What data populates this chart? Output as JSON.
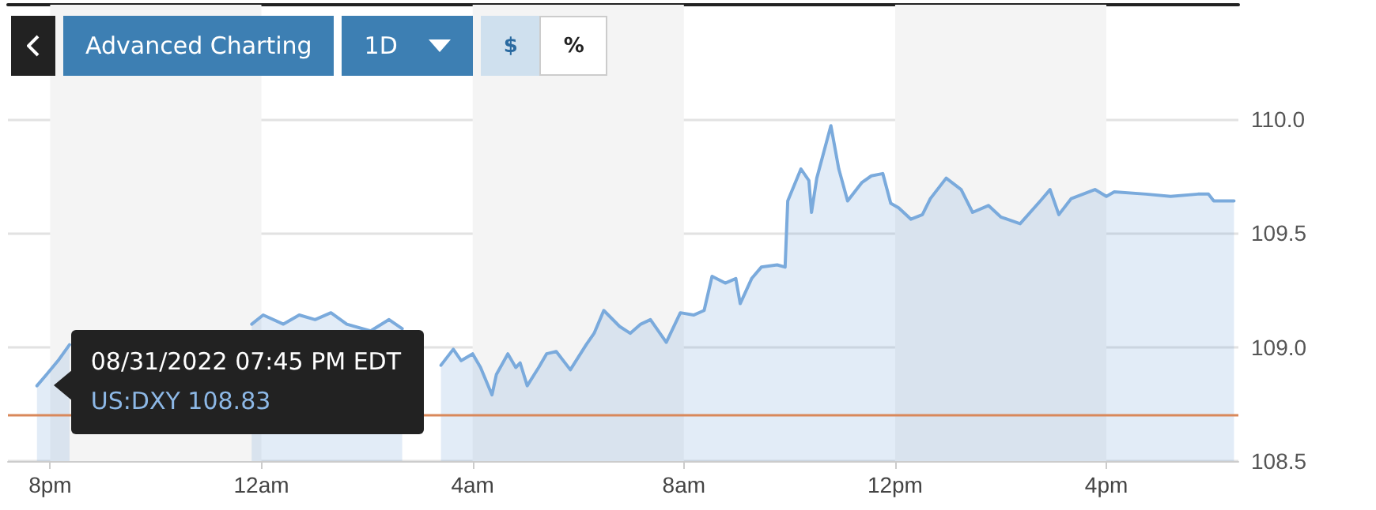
{
  "chart_data": {
    "type": "area",
    "x": [
      "2022-08-31T19:45",
      "2022-08-31T19:56",
      "2022-08-31T20:09",
      "2022-08-31T20:22",
      "2022-08-31T20:30",
      "2022-08-31T23:42",
      "2022-08-31T23:49",
      "2022-09-01T00:02",
      "2022-09-01T00:25",
      "2022-09-01T00:43",
      "2022-09-01T01:01",
      "2022-09-01T01:19",
      "2022-09-01T01:37",
      "2022-09-01T02:04",
      "2022-09-01T02:25",
      "2022-09-01T02:40",
      "2022-09-01T03:00",
      "2022-09-01T03:24",
      "2022-09-01T03:38",
      "2022-09-01T03:47",
      "2022-09-01T04:00",
      "2022-09-01T04:09",
      "2022-09-01T04:22",
      "2022-09-01T04:27",
      "2022-09-01T04:40",
      "2022-09-01T04:49",
      "2022-09-01T04:54",
      "2022-09-01T05:02",
      "2022-09-01T05:15",
      "2022-09-01T05:24",
      "2022-09-01T05:35",
      "2022-09-01T05:51",
      "2022-09-01T06:09",
      "2022-09-01T06:18",
      "2022-09-01T06:29",
      "2022-09-01T06:47",
      "2022-09-01T06:59",
      "2022-09-01T07:11",
      "2022-09-01T07:22",
      "2022-09-01T07:40",
      "2022-09-01T07:56",
      "2022-09-01T08:11",
      "2022-09-01T08:23",
      "2022-09-01T08:32",
      "2022-09-01T08:47",
      "2022-09-01T08:59",
      "2022-09-01T09:04",
      "2022-09-01T09:17",
      "2022-09-01T09:28",
      "2022-09-01T09:46",
      "2022-09-01T09:55",
      "2022-09-01T09:58",
      "2022-09-01T10:13",
      "2022-09-01T10:22",
      "2022-09-01T10:25",
      "2022-09-01T10:31",
      "2022-09-01T10:47",
      "2022-09-01T10:56",
      "2022-09-01T11:06",
      "2022-09-01T11:22",
      "2022-09-01T11:33",
      "2022-09-01T11:46",
      "2022-09-01T11:55",
      "2022-09-01T12:04",
      "2022-09-01T12:18",
      "2022-09-01T12:31",
      "2022-09-01T12:40",
      "2022-09-01T12:58",
      "2022-09-01T13:15",
      "2022-09-01T13:28",
      "2022-09-01T13:46",
      "2022-09-01T14:00",
      "2022-09-01T14:22",
      "2022-09-01T14:45",
      "2022-09-01T14:56",
      "2022-09-01T15:06",
      "2022-09-01T15:20",
      "2022-09-01T15:47",
      "2022-09-01T16:00",
      "2022-09-01T16:09",
      "2022-09-01T16:45",
      "2022-09-01T17:13",
      "2022-09-01T17:44",
      "2022-09-01T17:56",
      "2022-09-01T18:02",
      "2022-09-01T18:25"
    ],
    "series": [
      {
        "color": "#7aaadc",
        "values": [
          108.83,
          108.88,
          108.94,
          109.01,
          null,
          null,
          109.1,
          109.14,
          109.1,
          109.14,
          109.12,
          109.15,
          109.1,
          109.07,
          109.12,
          109.08,
          null,
          108.92,
          108.99,
          108.94,
          108.97,
          108.91,
          108.79,
          108.88,
          108.97,
          108.91,
          108.93,
          108.83,
          108.91,
          108.97,
          108.98,
          108.9,
          109.01,
          109.06,
          109.16,
          109.09,
          109.06,
          109.1,
          109.12,
          109.02,
          109.15,
          109.14,
          109.16,
          109.31,
          109.28,
          109.3,
          109.19,
          109.3,
          109.35,
          109.36,
          109.35,
          109.64,
          109.78,
          109.73,
          109.59,
          109.74,
          109.97,
          109.78,
          109.64,
          109.72,
          109.75,
          109.76,
          109.63,
          109.61,
          109.56,
          109.58,
          109.65,
          109.74,
          109.69,
          109.59,
          109.62,
          109.57,
          109.54,
          109.64,
          109.69,
          109.58,
          109.65,
          109.69,
          109.66,
          109.68,
          109.67,
          109.66,
          109.67,
          109.67,
          109.64,
          109.64
        ]
      }
    ],
    "xlim": [
      "2022-08-31T19:12",
      "2022-09-01T18:30"
    ],
    "xticks": [
      {
        "value": "2022-08-31T20:00",
        "label": "8pm"
      },
      {
        "value": "2022-09-01T00:00",
        "label": "12am"
      },
      {
        "value": "2022-09-01T04:00",
        "label": "4am"
      },
      {
        "value": "2022-09-01T08:00",
        "label": "8am"
      },
      {
        "value": "2022-09-01T12:00",
        "label": "12pm"
      },
      {
        "value": "2022-09-01T16:00",
        "label": "4pm"
      }
    ],
    "ylim": [
      108.5,
      110.5
    ],
    "yticks": [
      108.5,
      {
        "value": 109,
        "label": "109.0"
      },
      109.5,
      {
        "value": 110,
        "label": "110.0"
      }
    ],
    "grid": "y",
    "ref_lines": [
      {
        "axis": "y",
        "value": 108.7,
        "color": "#d9885a"
      }
    ],
    "bands": [
      {
        "axis": "x",
        "from": "2022-08-31T20:00",
        "to": "2022-09-01T00:00",
        "color": "#f4f4f4"
      },
      {
        "axis": "x",
        "from": "2022-09-01T04:00",
        "to": "2022-09-01T08:00",
        "color": "#f4f4f4"
      },
      {
        "axis": "x",
        "from": "2022-09-01T12:00",
        "to": "2022-09-01T16:00",
        "color": "#f4f4f4"
      }
    ],
    "annotations": [
      "Advanced Charting",
      "1D",
      "$",
      "%",
      {
        "text": "08/31/2022 07:45 PM EDT",
        "x": "2022-08-31T19:45",
        "y": 108.83
      },
      {
        "text": "US:DXY 108.83",
        "x": "2022-08-31T19:45",
        "y": 108.83
      }
    ]
  }
}
